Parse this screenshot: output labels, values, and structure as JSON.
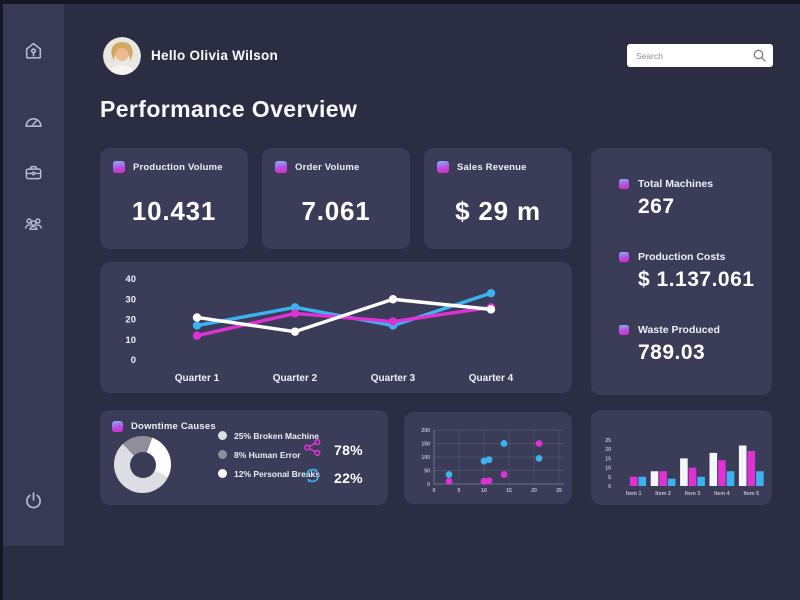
{
  "theme": {
    "background": "#2b2d42",
    "sidebar": "#383a55",
    "card": "#3a3c58",
    "accent_magenta": "#df31d4",
    "accent_cyan": "#3cb3ee",
    "accent_white": "#ffffff",
    "badge_gradient_top": "#8ab2f2",
    "badge_gradient_bottom": "#e327c1"
  },
  "sidebar": {
    "nav": [
      {
        "icon": "home-icon"
      },
      {
        "icon": "gauge-icon"
      },
      {
        "icon": "briefcase-icon"
      },
      {
        "icon": "users-icon"
      }
    ],
    "power": {
      "icon": "power-icon"
    }
  },
  "header": {
    "greeting": "Hello Olivia Wilson",
    "search": {
      "placeholder": "Search",
      "value": "",
      "icon": "search-icon"
    }
  },
  "page_title": "Performance Overview",
  "stat_cards": [
    {
      "label": "Production Volume",
      "value": "10.431"
    },
    {
      "label": "Order Volume",
      "value": "7.061"
    },
    {
      "label": "Sales Revenue",
      "value": "$ 29 m"
    }
  ],
  "summary_card": {
    "items": [
      {
        "label": "Total Machines",
        "value": "267"
      },
      {
        "label": "Production Costs",
        "value": "$ 1.137.061"
      },
      {
        "label": "Waste Produced",
        "value": "789.03"
      }
    ]
  },
  "chart_data": [
    {
      "type": "line",
      "categories": [
        "Quarter 1",
        "Quarter 2",
        "Quarter 3",
        "Quarter 4"
      ],
      "yticks": [
        0,
        10,
        20,
        30,
        40
      ],
      "ylim": [
        0,
        40
      ],
      "grid": false,
      "series": [
        {
          "name": "cyan",
          "color": "#3cb3ee",
          "values": [
            17,
            26,
            17,
            33
          ]
        },
        {
          "name": "magenta",
          "color": "#df31d4",
          "values": [
            12,
            23,
            19,
            26
          ]
        },
        {
          "name": "white",
          "color": "#ffffff",
          "values": [
            21,
            14,
            30,
            25
          ]
        }
      ]
    },
    {
      "type": "pie",
      "title": "Downtime Causes",
      "slices": [
        {
          "label": "25% Broken Machine",
          "pct": 25,
          "color": "#dddde4"
        },
        {
          "label": "8% Human Error",
          "pct": 8,
          "color": "#8f8f9a"
        },
        {
          "label": "12% Personal Breaks",
          "pct": 12,
          "color": "#ffffff"
        }
      ],
      "side_stats": [
        {
          "icon": "share-icon",
          "value": "78%",
          "color": "#df31d4"
        },
        {
          "icon": "refresh-icon",
          "value": "22%",
          "color": "#3cb3ee"
        }
      ]
    },
    {
      "type": "scatter",
      "xticks": [
        0,
        5,
        10,
        15,
        20,
        25
      ],
      "yticks": [
        0,
        50,
        100,
        150,
        200
      ],
      "xlim": [
        0,
        25
      ],
      "ylim": [
        0,
        200
      ],
      "grid": true,
      "series": [
        {
          "name": "cyan",
          "color": "#3cb3ee",
          "points": [
            [
              3,
              35
            ],
            [
              10,
              85
            ],
            [
              11,
              90
            ],
            [
              14,
              150
            ],
            [
              21,
              95
            ]
          ]
        },
        {
          "name": "magenta",
          "color": "#df31d4",
          "points": [
            [
              3,
              10
            ],
            [
              10,
              10
            ],
            [
              11,
              12
            ],
            [
              14,
              35
            ],
            [
              21,
              150
            ]
          ]
        }
      ]
    },
    {
      "type": "bar",
      "categories": [
        "Item 1",
        "Item 2",
        "Item 3",
        "Item 4",
        "Item 5"
      ],
      "yticks": [
        0,
        5,
        10,
        15,
        20,
        25
      ],
      "ylim": [
        0,
        25
      ],
      "grid": false,
      "series": [
        {
          "name": "white",
          "color": "#f5f6fa",
          "values": [
            0,
            8,
            15,
            18,
            22
          ]
        },
        {
          "name": "magenta",
          "color": "#df31d4",
          "values": [
            5,
            8,
            10,
            14,
            19
          ]
        },
        {
          "name": "cyan",
          "color": "#3cb3ee",
          "values": [
            5,
            4,
            5,
            8,
            8
          ]
        }
      ]
    }
  ]
}
